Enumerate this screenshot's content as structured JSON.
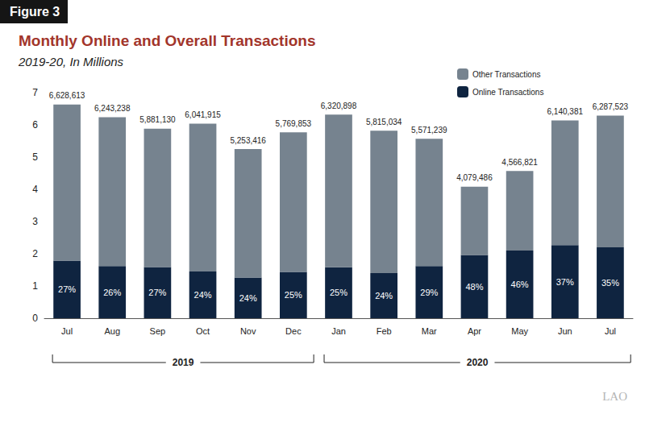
{
  "figure_label": "Figure 3",
  "source_logo": "LAO",
  "chart_data": {
    "type": "bar",
    "title": "Monthly Online and Overall Transactions",
    "subtitle": "2019-20, In Millions",
    "categories": [
      "Jul",
      "Aug",
      "Sep",
      "Oct",
      "Nov",
      "Dec",
      "Jan",
      "Feb",
      "Mar",
      "Apr",
      "May",
      "Jun",
      "Jul"
    ],
    "stacked": true,
    "grid": false,
    "legend": "top right",
    "ylim": [
      0,
      7
    ],
    "yticks": [
      0,
      1,
      2,
      3,
      4,
      5,
      6,
      7
    ],
    "series": [
      {
        "name": "Online Transactions",
        "color": "#0f2440",
        "values": [
          1.79,
          1.62,
          1.59,
          1.45,
          1.26,
          1.44,
          1.58,
          1.4,
          1.62,
          1.96,
          2.1,
          2.27,
          2.2
        ],
        "shares": [
          27,
          26,
          27,
          24,
          24,
          25,
          25,
          24,
          29,
          48,
          46,
          37,
          35
        ],
        "share_labels": [
          "27%",
          "26%",
          "27%",
          "24%",
          "24%",
          "25%",
          "25%",
          "24%",
          "29%",
          "48%",
          "46%",
          "37%",
          "35%"
        ]
      },
      {
        "name": "Other Transactions",
        "color": "#76838f",
        "values": [
          4.84,
          4.62,
          4.29,
          4.59,
          3.99,
          4.33,
          4.74,
          4.42,
          3.95,
          2.12,
          2.47,
          3.87,
          4.09
        ]
      }
    ],
    "totals": [
      6.628613,
      6.243238,
      5.88113,
      6.041915,
      5.253416,
      5.769853,
      6.320898,
      5.815034,
      5.571239,
      4.079486,
      4.566821,
      6.140381,
      6.287523
    ],
    "total_labels": [
      "6,628,613",
      "6,243,238",
      "5,881,130",
      "6,041,915",
      "5,253,416",
      "5,769,853",
      "6,320,898",
      "5,815,034",
      "5,571,239",
      "4,079,486",
      "4,566,821",
      "6,140,381",
      "6,287,523"
    ],
    "groups": [
      {
        "label": "2019",
        "from": 0,
        "to": 5
      },
      {
        "label": "2020",
        "from": 6,
        "to": 12
      }
    ]
  }
}
